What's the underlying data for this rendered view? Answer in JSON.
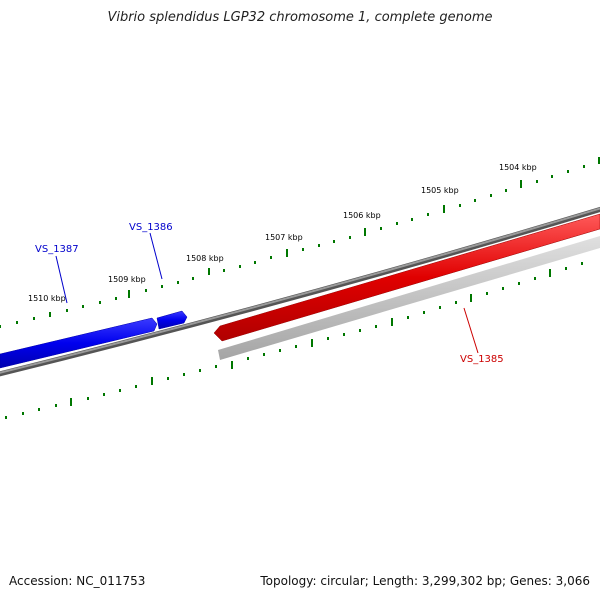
{
  "title": "Vibrio splendidus LGP32 chromosome 1, complete genome",
  "footer": {
    "accession": "Accession: NC_011753",
    "summary": "Topology: circular; Length: 3,299,302 bp; Genes: 3,066"
  },
  "colors": {
    "backbone": "#7a7a7a",
    "forward_gene": "#0000ee",
    "reverse_gene": "#dd0000",
    "gc_track": "#bdbdbd",
    "ticks": "#007700",
    "blue_label": "#0000cc",
    "red_label": "#cc0000"
  },
  "scale": {
    "unit": "kbp",
    "labels": [
      "1504 kbp",
      "1505 kbp",
      "1506 kbp",
      "1507 kbp",
      "1508 kbp",
      "1509 kbp",
      "1510 kbp"
    ]
  },
  "genes": [
    {
      "name": "VS_1385",
      "strand": "reverse"
    },
    {
      "name": "VS_1386",
      "strand": "forward"
    },
    {
      "name": "VS_1387",
      "strand": "forward"
    }
  ]
}
